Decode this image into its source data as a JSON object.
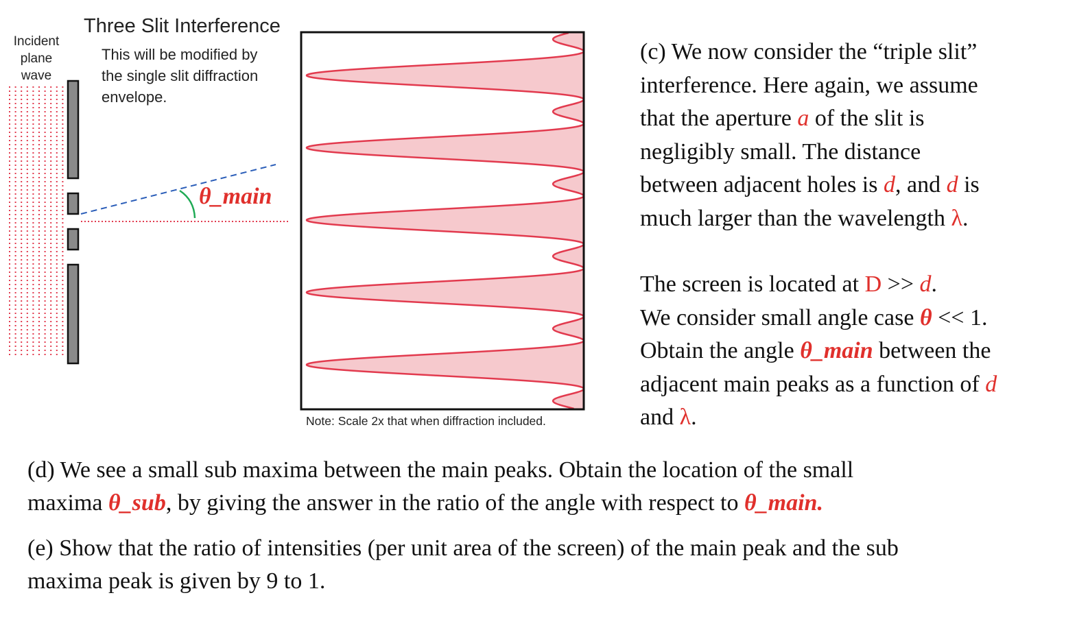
{
  "diagram": {
    "incident_label_lines": [
      "Incident",
      "plane",
      "wave"
    ],
    "title": "Three Slit Interference",
    "note_lines": [
      "This will be modified by",
      "the single slit diffraction",
      "envelope."
    ],
    "angle_label": "θ_main",
    "scale_note": "Note: Scale 2x that when diffraction included.",
    "colors": {
      "wave": "#e23a4e",
      "slit": "#8a8a8a",
      "fill": "#f6c9cd",
      "curve": "#e23a4e",
      "angle_arc": "#1faa55",
      "ray": "#2a5db8"
    }
  },
  "part_c": {
    "l1": "(c) We now consider the “triple slit”",
    "l2": "interference.  Here again, we assume",
    "l3a": "that the aperture ",
    "l3v": "a",
    "l3b": " of the slit is",
    "l4": "negligibly small.  The distance",
    "l5a": "between adjacent holes is ",
    "l5v": "d",
    "l5b": ", and ",
    "l5v2": "d",
    "l5c": " is",
    "l6a": "much larger than the wavelength ",
    "l6v": "λ",
    "l6b": ".",
    "l7a": "The screen is located at ",
    "l7v": "D",
    "l7b": " >> ",
    "l7v2": "d",
    "l7c": ".",
    "l8a": "We consider small angle case ",
    "l8v": "θ",
    "l8b": " << 1.",
    "l9a": "Obtain the angle ",
    "l9v": "θ_main",
    "l9b": " between the",
    "l10a": "adjacent main peaks as a function of ",
    "l10v": "d",
    "l11a": "and ",
    "l11v": "λ",
    "l11b": "."
  },
  "part_d": {
    "l1": "(d) We see a small sub maxima between the main peaks.   Obtain the location of the small",
    "l2a": "maxima ",
    "l2v": "θ_sub",
    "l2b": ", by giving the answer in the ratio of the angle with respect to ",
    "l2v2": "θ_main."
  },
  "part_e": {
    "l1": "(e)  Show that the ratio of intensities (per unit area of the screen) of the main peak and the sub",
    "l2": "maxima peak is given by 9 to 1."
  }
}
